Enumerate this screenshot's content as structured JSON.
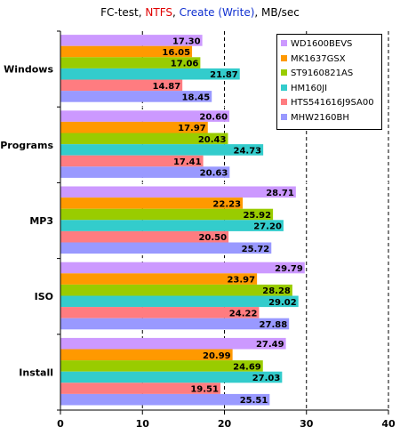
{
  "title": {
    "prefix": "FC-test, ",
    "ntfs": "NTFS",
    "sep1": ", ",
    "mode": "Create (Write)",
    "suffix": ", MB/sec"
  },
  "colors": {
    "WD1600BEVS": "#cc99ff",
    "MK1637GSX": "#ff9900",
    "ST9160821AS": "#99cc00",
    "HM160JI": "#33cccc",
    "HTS541616J9SA00": "#ff7c80",
    "MHW2160BH": "#9999ff",
    "title_red": "#e00000",
    "title_blue": "#1030d0"
  },
  "chart_data": {
    "type": "bar",
    "orientation": "horizontal",
    "categories": [
      "Windows",
      "Programs",
      "MP3",
      "ISO",
      "Install"
    ],
    "series": [
      {
        "name": "WD1600BEVS",
        "values": [
          17.3,
          20.6,
          28.71,
          29.79,
          27.49
        ]
      },
      {
        "name": "MK1637GSX",
        "values": [
          16.05,
          17.97,
          22.23,
          23.97,
          20.99
        ]
      },
      {
        "name": "ST9160821AS",
        "values": [
          17.06,
          20.43,
          25.92,
          28.28,
          24.69
        ]
      },
      {
        "name": "HM160JI",
        "values": [
          21.87,
          24.73,
          27.2,
          29.02,
          27.03
        ]
      },
      {
        "name": "HTS541616J9SA00",
        "values": [
          14.87,
          17.41,
          20.5,
          24.22,
          19.51
        ]
      },
      {
        "name": "MHW2160BH",
        "values": [
          18.45,
          20.63,
          25.72,
          27.88,
          25.51
        ]
      }
    ],
    "value_labels": [
      [
        "17.30",
        "20.60",
        "28.71",
        "29.79",
        "27.49"
      ],
      [
        "16.05",
        "17.97",
        "22.23",
        "23.97",
        "20.99"
      ],
      [
        "17.06",
        "20.43",
        "25.92",
        "28.28",
        "24.69"
      ],
      [
        "21.87",
        "24.73",
        "27.20",
        "29.02",
        "27.03"
      ],
      [
        "14.87",
        "17.41",
        "20.50",
        "24.22",
        "19.51"
      ],
      [
        "18.45",
        "20.63",
        "25.72",
        "27.88",
        "25.51"
      ]
    ],
    "xlim": [
      0,
      40
    ],
    "x_ticks": [
      0,
      10,
      20,
      30,
      40
    ],
    "x_tick_labels": [
      "0",
      "10",
      "20",
      "30",
      "40"
    ],
    "gridlines": "dashed vertical",
    "legend_placement": "top-right"
  }
}
